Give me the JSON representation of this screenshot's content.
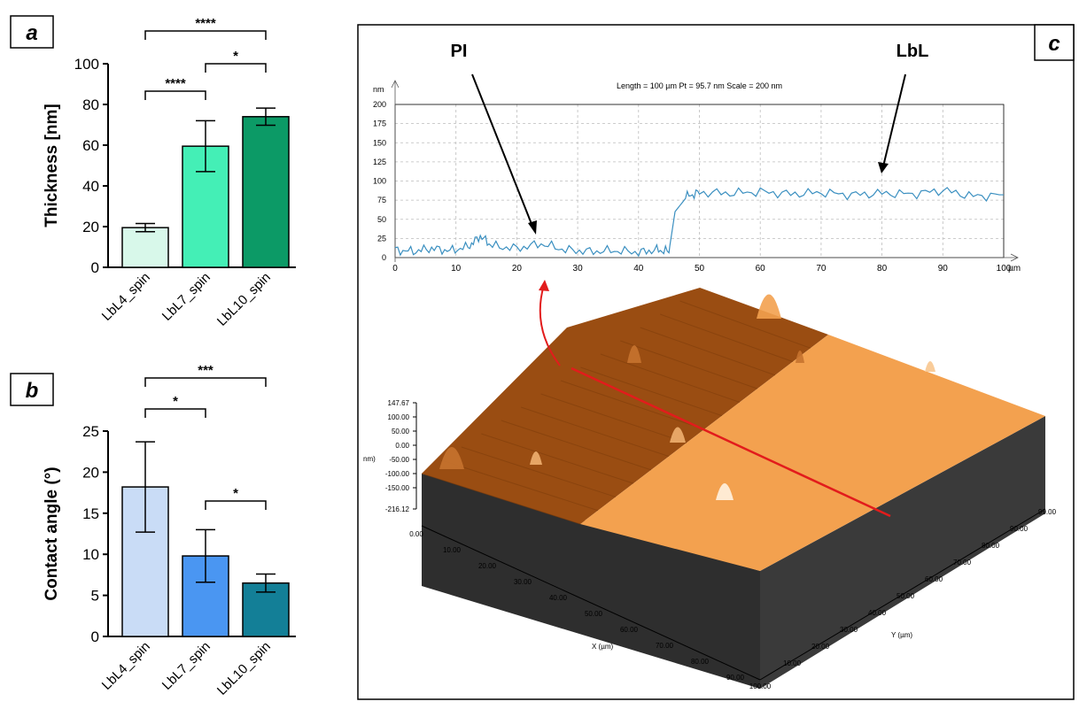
{
  "panel_labels": {
    "a": "a",
    "b": "b",
    "c": "c"
  },
  "chart_data": [
    {
      "panel": "a",
      "type": "bar",
      "ylabel": "Thickness [nm]",
      "ylim": [
        0,
        100
      ],
      "yticks": [
        "0",
        "20",
        "40",
        "60",
        "80",
        "100"
      ],
      "categories": [
        "LbL4_spin",
        "LbL7_spin",
        "LbL10_spin"
      ],
      "values": [
        19.5,
        59.5,
        74
      ],
      "errors": [
        2,
        12.5,
        4.2
      ],
      "colors": [
        "#d8f8ea",
        "#44efb6",
        "#0c9a66"
      ],
      "significance": [
        {
          "from": 0,
          "to": 1,
          "label": "****"
        },
        {
          "from": 1,
          "to": 2,
          "label": "*"
        },
        {
          "from": 0,
          "to": 2,
          "label": "****"
        }
      ]
    },
    {
      "panel": "b",
      "type": "bar",
      "ylabel": "Contact angle (°)",
      "ylim": [
        0,
        25
      ],
      "yticks": [
        "0",
        "5",
        "10",
        "15",
        "20",
        "25"
      ],
      "categories": [
        "LbL4_spin",
        "LbL7_spin",
        "LbL10_spin"
      ],
      "values": [
        18.2,
        9.8,
        6.5
      ],
      "errors": [
        5.5,
        3.2,
        1.1
      ],
      "colors": [
        "#c9dcf6",
        "#4a96f2",
        "#137f97"
      ],
      "significance": [
        {
          "from": 0,
          "to": 1,
          "label": "*"
        },
        {
          "from": 1,
          "to": 2,
          "label": "*"
        },
        {
          "from": 0,
          "to": 2,
          "label": "***"
        }
      ]
    },
    {
      "panel": "c",
      "type": "line",
      "title": "Length = 100 µm  Pt = 95.7 nm  Scale = 200 nm",
      "ylabel": "nm",
      "xlabel": "µm",
      "xlim": [
        0,
        100
      ],
      "ylim": [
        0,
        200
      ],
      "xticks": [
        "0",
        "10",
        "20",
        "30",
        "40",
        "50",
        "60",
        "70",
        "80",
        "90",
        "100"
      ],
      "yticks": [
        "0",
        "25",
        "50",
        "75",
        "100",
        "125",
        "150",
        "175",
        "200"
      ],
      "annotations": [
        "PI",
        "LbL"
      ],
      "series": [
        {
          "color": "#3a8fc0",
          "x": [
            0,
            3,
            6,
            9,
            12,
            14,
            16,
            20,
            24,
            28,
            32,
            36,
            40,
            43,
            45,
            46,
            48,
            50,
            55,
            60,
            65,
            70,
            75,
            80,
            85,
            90,
            95,
            100
          ],
          "y": [
            10,
            8,
            12,
            9,
            14,
            28,
            15,
            12,
            18,
            10,
            8,
            9,
            7,
            10,
            8,
            60,
            80,
            85,
            84,
            86,
            83,
            85,
            82,
            84,
            83,
            88,
            80,
            82
          ]
        }
      ]
    }
  ],
  "surface_3d": {
    "z_label": "nm)",
    "z_ticks": [
      "147.67",
      "100.00",
      "50.00",
      "0.00",
      "-50.00",
      "-100.00",
      "-150.00",
      "-216.12"
    ],
    "x_label": "X (µm)",
    "x_ticks": [
      "0.00",
      "10.00",
      "20.00",
      "30.00",
      "40.00",
      "50.00",
      "60.00",
      "70.00",
      "80.00",
      "90.00"
    ],
    "y_label": "Y (µm)",
    "y_ticks": [
      "10.00",
      "20.00",
      "30.00",
      "40.00",
      "50.00",
      "60.00",
      "70.00",
      "80.00",
      "90.00",
      "99.00"
    ],
    "x_end_tick": "100.00",
    "colors": {
      "pi_surface": "#9a4d12",
      "lbl_surface": "#f3a14f",
      "base": "#2e2e2e",
      "profile_line": "#e21c1c"
    }
  }
}
